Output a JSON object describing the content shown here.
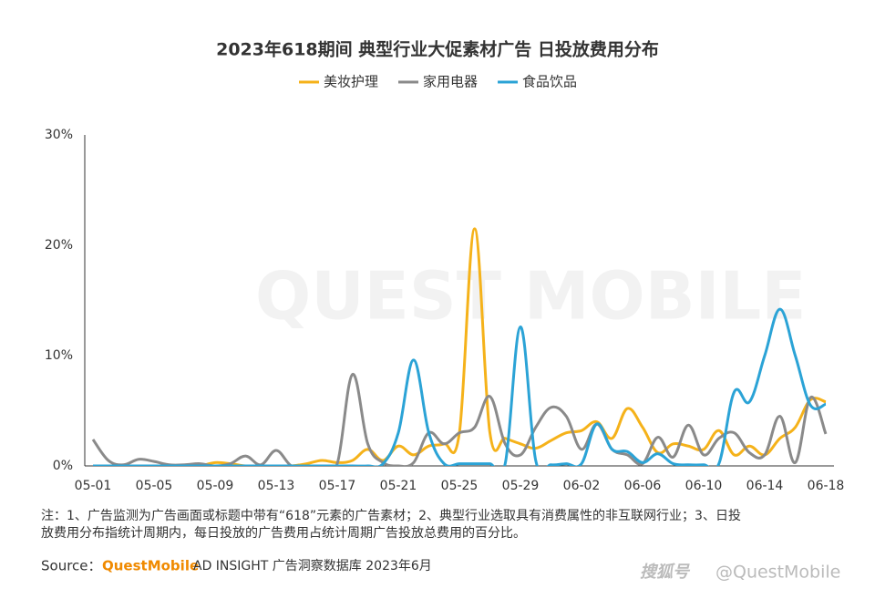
{
  "chart_data": {
    "type": "line",
    "title": "2023年618期间 典型行业大促素材广告 日投放费用分布",
    "categories": [
      "05-01",
      null,
      null,
      null,
      "05-05",
      null,
      null,
      null,
      "05-09",
      null,
      null,
      null,
      "05-13",
      null,
      null,
      null,
      "05-17",
      null,
      null,
      null,
      "05-21",
      null,
      null,
      null,
      "05-25",
      null,
      null,
      null,
      "05-29",
      null,
      null,
      null,
      "06-02",
      null,
      null,
      null,
      "06-06",
      null,
      null,
      null,
      "06-10",
      null,
      null,
      null,
      "06-14",
      null,
      null,
      null,
      "06-18"
    ],
    "series": [
      {
        "name": "美妆护理",
        "color": "#f5b21a",
        "values": [
          0,
          0,
          0,
          0,
          0,
          0,
          0,
          0,
          0.3,
          0.2,
          0,
          0,
          0,
          0,
          0.2,
          0.5,
          0.3,
          0.5,
          1.5,
          0.5,
          1.8,
          1.0,
          1.8,
          2.0,
          3.0,
          21.5,
          3.0,
          2.5,
          2.0,
          1.6,
          2.3,
          3.0,
          3.2,
          4.0,
          2.5,
          5.2,
          3.5,
          1.2,
          2.0,
          1.8,
          1.5,
          3.2,
          1.0,
          1.8,
          1.0,
          2.5,
          3.5,
          6.0,
          5.8
        ]
      },
      {
        "name": "家用电器",
        "color": "#8a8a8a",
        "values": [
          2.4,
          0.5,
          0.1,
          0.6,
          0.4,
          0.1,
          0.1,
          0.2,
          0,
          0.2,
          0.9,
          0.1,
          1.4,
          0,
          0,
          0,
          0.2,
          8.3,
          2.0,
          0.3,
          0,
          0.3,
          3.0,
          2.0,
          3.0,
          3.5,
          6.3,
          2.0,
          1.0,
          3.5,
          5.3,
          4.5,
          1.5,
          3.8,
          1.5,
          1.0,
          0.2,
          2.6,
          0.8,
          3.7,
          1.0,
          2.5,
          3.0,
          1.2,
          1.0,
          4.5,
          0.3,
          6.2,
          2.9
        ]
      },
      {
        "name": "食品饮品",
        "color": "#2ba3d6",
        "values": [
          0,
          0,
          0,
          0,
          0,
          0,
          0,
          0,
          0,
          0,
          0,
          0,
          0,
          0,
          0,
          0,
          0,
          0,
          0,
          0.2,
          3.0,
          9.6,
          3.0,
          0.2,
          0.2,
          0.2,
          0.2,
          0.2,
          12.6,
          0.5,
          0.1,
          0.2,
          0.2,
          3.8,
          1.5,
          1.3,
          0.3,
          1.1,
          0.2,
          0.1,
          0.1,
          0.2,
          6.7,
          5.8,
          10.0,
          14.2,
          10.0,
          5.5,
          5.6
        ]
      }
    ],
    "ylim": [
      0,
      30
    ],
    "yticks": [
      {
        "value": 0,
        "label": "0%"
      },
      {
        "value": 10,
        "label": "10%"
      },
      {
        "value": 20,
        "label": "20%"
      },
      {
        "value": 30,
        "label": "30%"
      }
    ],
    "note_lines": [
      "注：1、广告监测为广告画面或标题中带有“618”元素的广告素材；2、典型行业选取具有消费属性的非互联网行业；3、日投",
      "放费用分布指统计周期内，每日投放的广告费用占统计周期广告投放总费用的百分比。"
    ],
    "source_label": "Source：",
    "source_brand": "QuestMobile",
    "source_text": "AD INSIGHT 广告洞察数据库 2023年6月",
    "watermark": "QUEST MOBILE",
    "platform": "搜狐号",
    "account": "@QuestMobile"
  }
}
